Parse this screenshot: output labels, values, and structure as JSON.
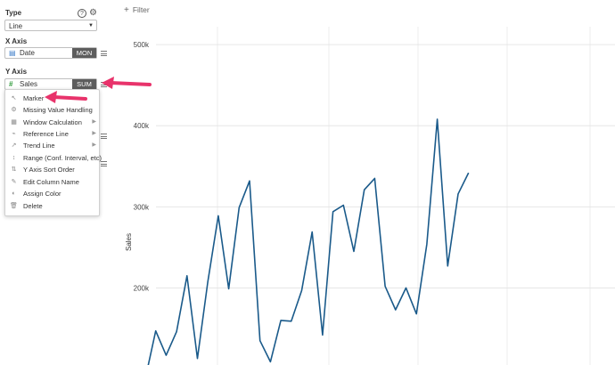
{
  "sidebar": {
    "type_label": "Type",
    "type_value": "Line",
    "x_axis_label": "X Axis",
    "x_field": {
      "name": "Date",
      "agg": "MON",
      "icon": "calendar-icon"
    },
    "y_axis_label": "Y Axis",
    "y_field": {
      "name": "Sales",
      "agg": "SUM",
      "icon": "hash-icon"
    }
  },
  "menu": {
    "items": [
      {
        "label": "Marker",
        "icon": "cursor-icon",
        "has_submenu": false
      },
      {
        "label": "Missing Value Handling",
        "icon": "gear-icon",
        "has_submenu": false
      },
      {
        "label": "Window Calculation",
        "icon": "grid-icon",
        "has_submenu": true
      },
      {
        "label": "Reference Line",
        "icon": "line-chart-icon",
        "has_submenu": true
      },
      {
        "label": "Trend Line",
        "icon": "trend-icon",
        "has_submenu": true
      },
      {
        "label": "Range (Conf. Interval, etc)",
        "icon": "range-icon",
        "has_submenu": false
      },
      {
        "label": "Y Axis Sort Order",
        "icon": "sort-icon",
        "has_submenu": false
      },
      {
        "label": "Edit Column Name",
        "icon": "edit-icon",
        "has_submenu": false
      },
      {
        "label": "Assign Color",
        "icon": "palette-icon",
        "has_submenu": false
      },
      {
        "label": "Delete",
        "icon": "trash-icon",
        "has_submenu": false
      }
    ]
  },
  "toolbar": {
    "filter_label": "Filter"
  },
  "colors": {
    "line": "#1a5a8a",
    "arrow": "#e8336b",
    "agg_bg": "#5d5d5d"
  },
  "chart_data": {
    "type": "line",
    "ylabel": "Sales",
    "xlabel": "",
    "yticks": [
      "500k",
      "400k",
      "300k",
      "200k"
    ],
    "ytick_values": [
      500000,
      400000,
      300000,
      200000
    ],
    "ylim": [
      105000,
      555000
    ],
    "values": [
      88000,
      147000,
      117000,
      146000,
      215000,
      113000,
      208000,
      289000,
      199000,
      299000,
      332000,
      135000,
      109000,
      160000,
      159000,
      197000,
      269000,
      142000,
      294000,
      302000,
      245000,
      321000,
      335000,
      202000,
      173000,
      200000,
      168000,
      254000,
      408000,
      227000,
      316000,
      342000
    ]
  }
}
